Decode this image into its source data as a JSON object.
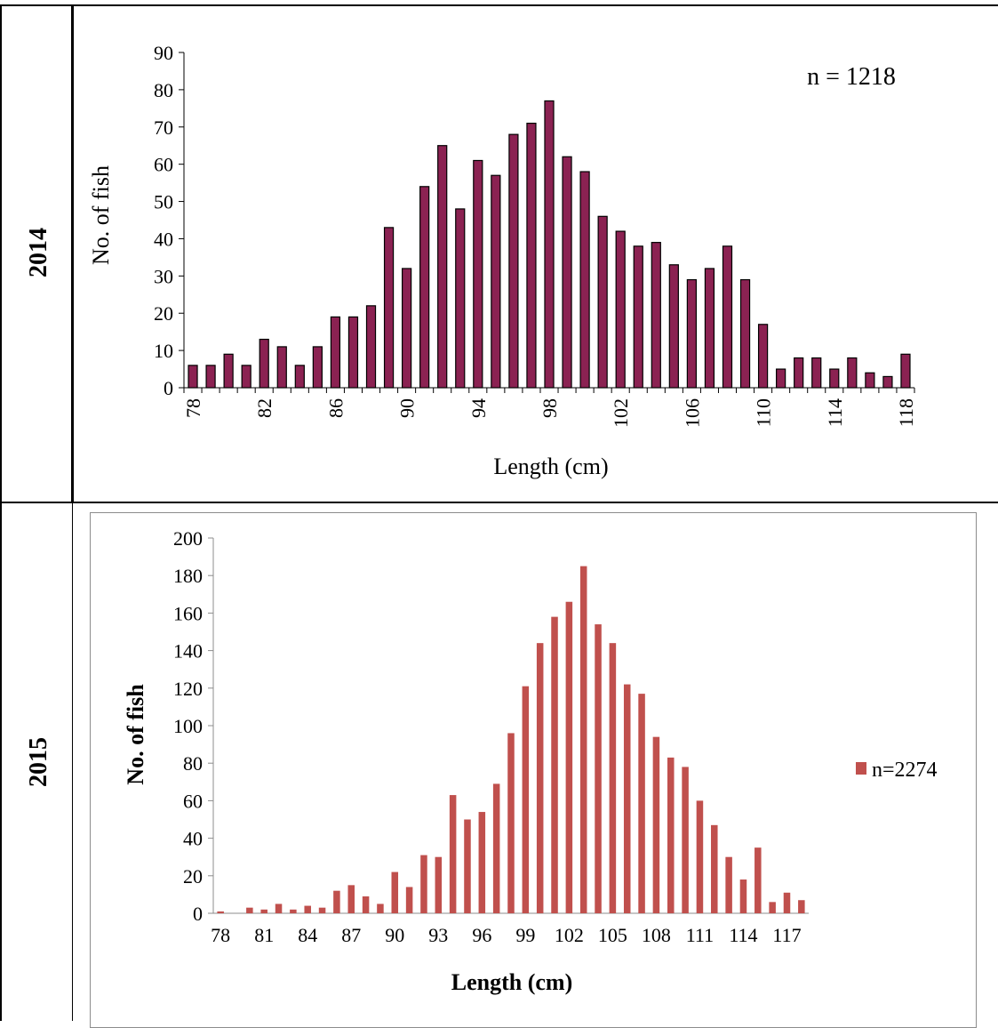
{
  "table": {
    "row1_label": "2014",
    "row2_label": "2015"
  },
  "charts": [
    {
      "title": "",
      "annotation": "n = 1218",
      "xlabel": "Length (cm)",
      "ylabel": "No. of fish",
      "bar_color": "#8b2252",
      "bar_outline": "#000000"
    },
    {
      "title": "",
      "legend": "n=2274",
      "xlabel": "Length (cm)",
      "ylabel": "No. of fish",
      "bar_color": "#c0504d"
    }
  ],
  "chart_data": [
    {
      "type": "bar",
      "categories": [
        78,
        79,
        80,
        81,
        82,
        83,
        84,
        85,
        86,
        87,
        88,
        89,
        90,
        91,
        92,
        93,
        94,
        95,
        96,
        97,
        98,
        99,
        100,
        101,
        102,
        103,
        104,
        105,
        106,
        107,
        108,
        109,
        110,
        111,
        112,
        113,
        114,
        115,
        116,
        117,
        118
      ],
      "values": [
        6,
        6,
        9,
        6,
        13,
        11,
        6,
        11,
        19,
        19,
        22,
        43,
        32,
        54,
        65,
        48,
        61,
        57,
        68,
        71,
        77,
        62,
        58,
        46,
        42,
        38,
        39,
        33,
        29,
        32,
        38,
        29,
        17,
        5,
        8,
        8,
        5,
        8,
        4,
        3,
        9
      ],
      "tick_labels": [
        "78",
        "82",
        "86",
        "90",
        "94",
        "98",
        "102",
        "106",
        "110",
        "114",
        "118"
      ],
      "ylim": [
        0,
        90
      ],
      "yticks": [
        0,
        10,
        20,
        30,
        40,
        50,
        60,
        70,
        80,
        90
      ],
      "xlabel": "Length (cm)",
      "ylabel": "No. of fish",
      "annotation": "n = 1218",
      "grid": false,
      "legend": "none"
    },
    {
      "type": "bar",
      "categories": [
        78,
        79,
        80,
        81,
        82,
        83,
        84,
        85,
        86,
        87,
        88,
        89,
        90,
        91,
        92,
        93,
        94,
        95,
        96,
        97,
        98,
        99,
        100,
        101,
        102,
        103,
        104,
        105,
        106,
        107,
        108,
        109,
        110,
        111,
        112,
        113,
        114,
        115,
        116,
        117,
        118
      ],
      "values": [
        1,
        0,
        3,
        2,
        5,
        2,
        4,
        3,
        12,
        15,
        9,
        5,
        22,
        14,
        31,
        30,
        63,
        50,
        54,
        69,
        96,
        121,
        144,
        158,
        166,
        185,
        154,
        144,
        122,
        117,
        94,
        83,
        78,
        60,
        47,
        30,
        18,
        35,
        6,
        11,
        7
      ],
      "tick_labels": [
        "78",
        "81",
        "84",
        "87",
        "90",
        "93",
        "96",
        "99",
        "102",
        "105",
        "108",
        "111",
        "114",
        "117"
      ],
      "ylim": [
        0,
        200
      ],
      "yticks": [
        0,
        20,
        40,
        60,
        80,
        100,
        120,
        140,
        160,
        180,
        200
      ],
      "xlabel": "Length (cm)",
      "ylabel": "No. of fish",
      "series": [
        {
          "name": "n=2274",
          "values": [
            1,
            0,
            3,
            2,
            5,
            2,
            4,
            3,
            12,
            15,
            9,
            5,
            22,
            14,
            31,
            30,
            63,
            50,
            54,
            69,
            96,
            121,
            144,
            158,
            166,
            185,
            154,
            144,
            122,
            117,
            94,
            83,
            78,
            60,
            47,
            30,
            18,
            35,
            6,
            11,
            7
          ]
        }
      ],
      "grid": false,
      "legend": "right"
    }
  ]
}
